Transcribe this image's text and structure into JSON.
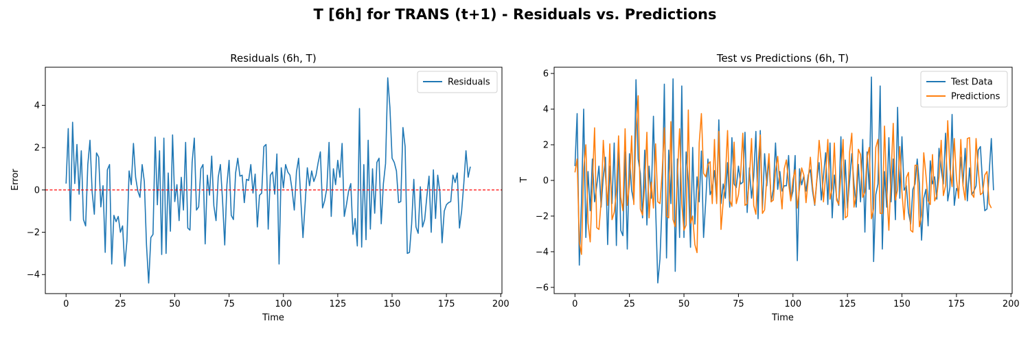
{
  "suptitle": "T [6h] for TRANS (t+1) - Residuals vs. Predictions",
  "chart_data": [
    {
      "type": "line",
      "title": "Residuals (6h, T)",
      "xlabel": "Time",
      "ylabel": "Error",
      "xlim": [
        -9.55,
        200.55
      ],
      "ylim": [
        -4.9,
        5.8
      ],
      "xticks": [
        0,
        25,
        50,
        75,
        100,
        125,
        150,
        175,
        200
      ],
      "yticks": [
        -4,
        -2,
        0,
        2,
        4
      ],
      "grid": false,
      "legend_position": "upper right",
      "reference_line": {
        "y": 0,
        "color": "#ff0000",
        "style": "dashed"
      },
      "series": [
        {
          "name": "Residuals",
          "color": "#1f77b4",
          "values": [
            0.3,
            2.9,
            -1.45,
            3.2,
            0.3,
            2.15,
            -0.2,
            1.85,
            -1.4,
            -1.7,
            1.2,
            2.35,
            -0.1,
            -1.15,
            1.75,
            1.55,
            -0.8,
            0.2,
            -2.95,
            0.95,
            1.2,
            -3.5,
            -1.2,
            -1.5,
            -1.25,
            -2.0,
            -1.7,
            -3.6,
            -2.4,
            0.9,
            0.25,
            2.2,
            0.6,
            -0.05,
            -0.35,
            1.2,
            0.4,
            -2.6,
            -4.4,
            -2.25,
            -2.1,
            2.5,
            -0.7,
            1.85,
            -3.05,
            2.45,
            -3.0,
            0.8,
            -1.95,
            2.6,
            -0.55,
            0.25,
            -1.45,
            0.6,
            -0.95,
            2.25,
            -1.8,
            -1.9,
            1.3,
            2.45,
            -0.95,
            -0.8,
            1.0,
            1.2,
            -2.55,
            0.7,
            -0.25,
            1.6,
            -0.75,
            -1.45,
            0.6,
            1.2,
            -0.5,
            -2.6,
            0.25,
            1.4,
            -1.2,
            -1.4,
            0.8,
            1.5,
            0.65,
            0.7,
            -0.6,
            0.5,
            0.45,
            1.2,
            -0.15,
            0.75,
            -1.75,
            -0.25,
            -0.15,
            2.05,
            2.15,
            -1.85,
            0.7,
            0.85,
            -0.2,
            1.7,
            -3.5,
            1.05,
            0.1,
            1.2,
            0.85,
            0.7,
            0.0,
            -0.95,
            0.85,
            1.5,
            -0.45,
            -2.25,
            -0.65,
            1.05,
            0.2,
            0.9,
            0.4,
            0.7,
            1.3,
            1.8,
            -0.85,
            -0.5,
            0.1,
            2.25,
            -1.25,
            1.0,
            0.25,
            1.4,
            0.6,
            2.2,
            -1.25,
            -0.7,
            -0.05,
            0.3,
            -2.1,
            -1.35,
            -2.65,
            3.85,
            -2.7,
            1.2,
            -2.35,
            2.35,
            -1.85,
            1.0,
            -1.1,
            1.3,
            1.5,
            -1.6,
            0.3,
            1.25,
            5.3,
            3.9,
            1.5,
            1.3,
            0.9,
            -0.6,
            -0.55,
            2.95,
            2.05,
            -3.0,
            -2.95,
            -1.6,
            0.5,
            -1.75,
            -2.05,
            0.15,
            -1.75,
            -1.4,
            -0.3,
            0.65,
            -2.0,
            0.95,
            -1.35,
            0.7,
            -0.1,
            -2.5,
            -1.0,
            -0.7,
            -0.6,
            -0.55,
            0.7,
            0.35,
            0.8,
            -1.8,
            -1.0,
            0.3,
            1.85,
            0.6,
            1.1
          ]
        }
      ]
    },
    {
      "type": "line",
      "title": "Test vs Predictions (6h, T)",
      "xlabel": "Time",
      "ylabel": "T",
      "xlim": [
        -9.55,
        200.55
      ],
      "ylim": [
        -6.35,
        6.35
      ],
      "xticks": [
        0,
        25,
        50,
        75,
        100,
        125,
        150,
        175,
        200
      ],
      "yticks": [
        -6,
        -4,
        -2,
        0,
        2,
        4,
        6
      ],
      "grid": false,
      "legend_position": "upper right",
      "series": [
        {
          "name": "Test Data",
          "color": "#1f77b4",
          "values": [
            0.8,
            3.75,
            -4.75,
            -1.2,
            4.0,
            -3.2,
            0.5,
            -1.7,
            1.2,
            -1.2,
            -0.3,
            0.8,
            -1.5,
            0.2,
            1.3,
            -3.6,
            0.8,
            -1.3,
            2.1,
            -3.65,
            2.25,
            -2.8,
            -3.1,
            1.6,
            -3.85,
            1.5,
            -0.55,
            -1.2,
            5.65,
            1.2,
            0.4,
            -2.1,
            1.7,
            -2.5,
            0.8,
            -1.0,
            3.6,
            -1.5,
            -5.75,
            -4.4,
            -1.2,
            5.4,
            -4.35,
            1.7,
            -1.3,
            5.7,
            -5.1,
            1.2,
            -3.2,
            5.3,
            -3.2,
            1.6,
            0.0,
            -3.75,
            1.85,
            -2.45,
            0.2,
            -1.2,
            1.65,
            -3.2,
            -1.15,
            1.2,
            -0.8,
            -0.45,
            0.55,
            -1.2,
            3.4,
            -1.3,
            -0.2,
            -1.0,
            1.0,
            -1.5,
            2.4,
            -0.2,
            -0.4,
            0.8,
            -0.2,
            -0.1,
            2.7,
            -1.8,
            0.7,
            -1.0,
            0.2,
            2.75,
            -2.15,
            2.8,
            -1.6,
            1.5,
            -0.3,
            1.2,
            -1.2,
            -0.5,
            2.1,
            -0.5,
            0.5,
            -0.6,
            -0.3,
            -0.3,
            1.4,
            -1.1,
            -0.6,
            1.4,
            -4.5,
            0.65,
            -0.25,
            0.25,
            -0.6,
            0.3,
            0.6,
            -0.6,
            -1.4,
            0.05,
            1.0,
            -1.1,
            0.25,
            1.55,
            -1.35,
            2.1,
            -2.1,
            0.3,
            -0.95,
            -1.4,
            2.45,
            -2.2,
            1.15,
            -1.55,
            0.0,
            1.5,
            -0.2,
            -1.5,
            0.9,
            -1.2,
            2.3,
            -2.9,
            1.6,
            -0.5,
            5.8,
            -4.55,
            -0.8,
            -0.2,
            5.3,
            -3.85,
            0.5,
            -1.5,
            2.4,
            -1.2,
            1.2,
            -2.2,
            4.1,
            -1.0,
            2.45,
            -0.55,
            -0.3,
            -1.8,
            -2.45,
            -0.5,
            -0.2,
            1.2,
            -0.2,
            -3.35,
            -1.0,
            -0.5,
            -2.55,
            1.1,
            -0.2,
            0.2,
            -1.05,
            1.8,
            0.6,
            -0.2,
            2.65,
            -1.15,
            -0.4,
            3.7,
            -1.4,
            -0.45,
            -0.7,
            1.3,
            -0.25,
            1.8,
            -1.15,
            0.7,
            -0.8,
            -0.6,
            -0.3,
            1.7,
            1.9,
            -0.2,
            -1.7,
            -1.6,
            0.4,
            2.35,
            -0.55
          ]
        },
        {
          "name": "Predictions",
          "color": "#ff7f0e",
          "values": [
            0.45,
            1.2,
            -3.45,
            -4.15,
            0.65,
            2.0,
            -2.4,
            -3.45,
            -0.2,
            2.95,
            -2.65,
            -2.75,
            -1.2,
            2.25,
            0.2,
            -1.4,
            2.05,
            -2.2,
            -1.8,
            -0.65,
            2.5,
            -0.95,
            -1.7,
            2.9,
            -1.4,
            -0.2,
            2.5,
            -1.35,
            2.8,
            4.75,
            -1.6,
            -1.95,
            -0.3,
            2.7,
            -2.1,
            -0.1,
            -1.55,
            2.05,
            -1.2,
            -1.3,
            0.45,
            2.95,
            -2.0,
            -2.1,
            3.3,
            -2.2,
            -2.6,
            0.3,
            2.9,
            -1.3,
            -2.8,
            -2.5,
            3.95,
            -2.4,
            -2.0,
            -3.6,
            -4.05,
            2.1,
            3.75,
            0.4,
            0.2,
            0.9,
            1.05,
            -1.3,
            2.3,
            -1.3,
            2.75,
            -2.75,
            -1.2,
            0.15,
            2.8,
            -1.1,
            -1.45,
            2.15,
            -1.3,
            -0.8,
            0.35,
            2.65,
            -1.4,
            -1.3,
            0.1,
            2.35,
            -1.4,
            -1.9,
            0.9,
            2.55,
            -1.85,
            -1.65,
            0.15,
            1.5,
            -1.2,
            -1.1,
            0.55,
            1.35,
            -0.2,
            -1.6,
            0.65,
            1.15,
            -0.15,
            -1.15,
            0.05,
            0.6,
            -1.55,
            -0.45,
            0.7,
            0.3,
            -1.25,
            0.05,
            1.3,
            -0.35,
            -1.35,
            0.15,
            2.25,
            1.0,
            -1.2,
            0.3,
            2.3,
            -1.05,
            -0.45,
            2.1,
            -1.1,
            -1.35,
            0.4,
            2.3,
            -2.1,
            -2.0,
            1.6,
            2.65,
            -1.5,
            -0.8,
            1.75,
            1.45,
            -0.95,
            -0.65,
            1.3,
            1.85,
            -2.15,
            -1.6,
            1.85,
            2.3,
            -1.85,
            -1.85,
            3.05,
            -0.55,
            -2.8,
            0.3,
            3.2,
            -1.1,
            -0.5,
            1.9,
            -0.65,
            -2.2,
            0.15,
            0.45,
            -2.8,
            -2.9,
            0.85,
            0.85,
            -2.6,
            -1.95,
            1.55,
            0.3,
            -1.15,
            -1.35,
            1.45,
            -1.15,
            -0.85,
            0.2,
            2.25,
            -0.85,
            -0.3,
            3.35,
            0.65,
            -0.35,
            2.35,
            0.1,
            -1.0,
            2.3,
            -0.3,
            -1.1,
            2.35,
            2.4,
            -0.75,
            -0.95,
            2.35,
            0.6,
            -0.8,
            -0.7,
            0.3,
            0.5,
            -1.3,
            -1.55
          ]
        }
      ]
    }
  ]
}
